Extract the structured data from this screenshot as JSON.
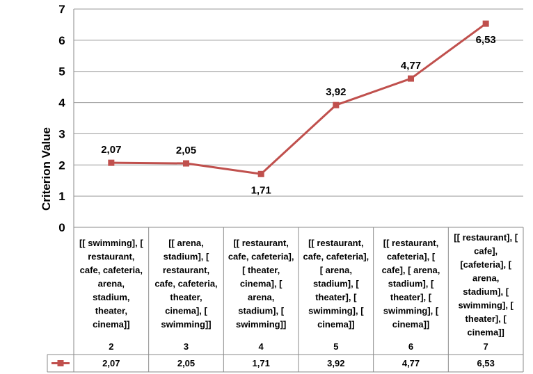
{
  "chart_data": {
    "type": "line",
    "title": "",
    "xlabel": "",
    "ylabel": "Criterion Value",
    "ylim": [
      0,
      7
    ],
    "yticks": [
      "0",
      "1",
      "2",
      "3",
      "4",
      "5",
      "6",
      "7"
    ],
    "grid": true,
    "legend": "data-table",
    "series_color": "#c0504d",
    "x": [
      "2",
      "3",
      "4",
      "5",
      "6",
      "7"
    ],
    "categories": [
      [
        "[[ swimming], [",
        "restaurant,",
        "cafe, cafeteria,",
        "arena,",
        "stadium,",
        "theater,",
        "cinema]]"
      ],
      [
        "[[ arena,",
        "stadium], [",
        "restaurant,",
        "cafe, cafeteria,",
        "theater,",
        "cinema], [",
        "swimming]]"
      ],
      [
        "[[ restaurant,",
        "cafe, cafeteria],",
        "[ theater,",
        "cinema], [",
        "arena,",
        "stadium], [",
        "swimming]]"
      ],
      [
        "[[ restaurant,",
        "cafe, cafeteria],",
        "[ arena,",
        "stadium], [",
        "theater], [",
        "swimming], [",
        "cinema]]"
      ],
      [
        "[[ restaurant,",
        "cafeteria], [",
        "cafe], [ arena,",
        "stadium], [",
        "theater], [",
        "swimming], [",
        "cinema]]"
      ],
      [
        "[[ restaurant], [",
        "cafe],",
        "[cafeteria], [",
        "arena,",
        "stadium], [",
        "swimming], [",
        "theater], [",
        "cinema]]"
      ]
    ],
    "values": [
      2.07,
      2.05,
      1.71,
      3.92,
      4.77,
      6.53
    ],
    "labels": [
      "2,07",
      "2,05",
      "1,71",
      "3,92",
      "4,77",
      "6,53"
    ]
  }
}
